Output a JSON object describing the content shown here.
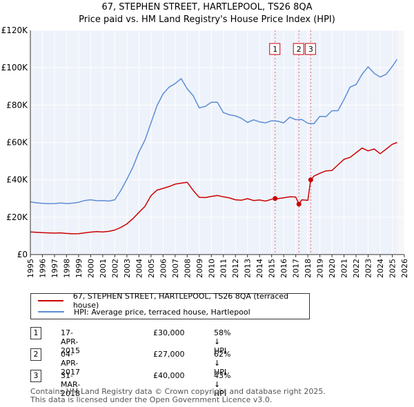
{
  "chart_data": {
    "type": "line",
    "title": "67, STEPHEN STREET, HARTLEPOOL, TS26 8QA",
    "subtitle": "Price paid vs. HM Land Registry's House Price Index (HPI)",
    "xlim": [
      1995,
      2026
    ],
    "ylim": [
      0,
      120000
    ],
    "x_ticks": [
      "1995",
      "1996",
      "1997",
      "1998",
      "1999",
      "2000",
      "2001",
      "2002",
      "2003",
      "2004",
      "2005",
      "2006",
      "2007",
      "2008",
      "2009",
      "2010",
      "2011",
      "2012",
      "2013",
      "2014",
      "2015",
      "2016",
      "2017",
      "2018",
      "2019",
      "2020",
      "2021",
      "2022",
      "2023",
      "2024",
      "2025",
      "2026"
    ],
    "y_ticks": [
      "£0",
      "£20K",
      "£40K",
      "£60K",
      "£80K",
      "£100K",
      "£120K"
    ],
    "y_tick_values": [
      0,
      20000,
      40000,
      60000,
      80000,
      100000,
      120000
    ],
    "grid": true,
    "series": [
      {
        "name": "67, STEPHEN STREET, HARTLEPOOL, TS26 8QA (terraced house)",
        "color": "#cc0000",
        "x": [
          1995.0,
          1995.5,
          1996.0,
          1996.5,
          1997.0,
          1997.5,
          1998.0,
          1998.5,
          1999.0,
          1999.5,
          2000.0,
          2000.5,
          2001.0,
          2001.5,
          2002.0,
          2002.5,
          2003.0,
          2003.5,
          2004.0,
          2004.5,
          2005.0,
          2005.5,
          2006.0,
          2006.5,
          2007.0,
          2007.5,
          2008.0,
          2008.5,
          2009.0,
          2009.5,
          2010.0,
          2010.5,
          2011.0,
          2011.5,
          2012.0,
          2012.5,
          2013.0,
          2013.5,
          2014.0,
          2014.5,
          2015.0,
          2015.29,
          2015.5,
          2016.0,
          2016.5,
          2017.0,
          2017.26,
          2017.5,
          2018.0,
          2018.24,
          2018.5,
          2019.0,
          2019.5,
          2020.0,
          2020.5,
          2021.0,
          2021.5,
          2022.0,
          2022.5,
          2023.0,
          2023.5,
          2024.0,
          2024.5,
          2025.0,
          2025.4
        ],
        "values": [
          12100,
          11900,
          11700,
          11600,
          11500,
          11600,
          11300,
          11100,
          11200,
          11600,
          12000,
          12300,
          12100,
          12400,
          13100,
          14500,
          16400,
          19200,
          22600,
          25800,
          31500,
          34500,
          35400,
          36400,
          37700,
          38200,
          38700,
          34300,
          30600,
          30500,
          31100,
          31600,
          30900,
          30300,
          29300,
          29100,
          29900,
          28900,
          29200,
          28600,
          29600,
          30000,
          29900,
          30400,
          30900,
          30800,
          27000,
          29300,
          29000,
          40000,
          42000,
          43500,
          44800,
          45000,
          48000,
          51000,
          52000,
          54500,
          57000,
          55500,
          56500,
          54000,
          56500,
          59000,
          60000
        ]
      },
      {
        "name": "HPI: Average price, terraced house, Hartlepool",
        "color": "#5b8dd6",
        "x": [
          1995.0,
          1995.5,
          1996.0,
          1996.5,
          1997.0,
          1997.5,
          1998.0,
          1998.5,
          1999.0,
          1999.5,
          2000.0,
          2000.5,
          2001.0,
          2001.5,
          2002.0,
          2002.5,
          2003.0,
          2003.5,
          2004.0,
          2004.5,
          2005.0,
          2005.5,
          2006.0,
          2006.5,
          2007.0,
          2007.5,
          2008.0,
          2008.5,
          2009.0,
          2009.5,
          2010.0,
          2010.5,
          2011.0,
          2011.5,
          2012.0,
          2012.5,
          2013.0,
          2013.5,
          2014.0,
          2014.5,
          2015.0,
          2015.5,
          2016.0,
          2016.5,
          2017.0,
          2017.5,
          2018.0,
          2018.5,
          2019.0,
          2019.5,
          2020.0,
          2020.5,
          2021.0,
          2021.5,
          2022.0,
          2022.5,
          2023.0,
          2023.5,
          2024.0,
          2024.5,
          2025.0,
          2025.4
        ],
        "values": [
          28200,
          27700,
          27400,
          27200,
          27300,
          27600,
          27300,
          27500,
          28000,
          28900,
          29300,
          28800,
          28900,
          28600,
          29300,
          34300,
          40300,
          46800,
          54900,
          61300,
          70500,
          79700,
          86000,
          89600,
          91500,
          94200,
          88700,
          85000,
          78500,
          79300,
          81500,
          81500,
          76000,
          74800,
          74200,
          72900,
          70700,
          72100,
          71000,
          70500,
          71600,
          71400,
          70500,
          73500,
          72200,
          72300,
          70300,
          70000,
          74000,
          73800,
          77000,
          77000,
          83000,
          89600,
          91000,
          96500,
          100500,
          97000,
          95000,
          96500,
          100700,
          104500
        ]
      }
    ],
    "vlines": [
      {
        "x": 2015.29,
        "label": "1"
      },
      {
        "x": 2017.26,
        "label": "2"
      },
      {
        "x": 2018.24,
        "label": "3"
      }
    ],
    "sales": [
      {
        "x": 2015.29,
        "y": 30000
      },
      {
        "x": 2017.26,
        "y": 27000
      },
      {
        "x": 2018.24,
        "y": 40000
      }
    ],
    "future_from": 2025.4
  },
  "legend": {
    "price_label": "67, STEPHEN STREET, HARTLEPOOL, TS26 8QA (terraced house)",
    "hpi_label": "HPI: Average price, terraced house, Hartlepool"
  },
  "transactions": [
    {
      "num": "1",
      "date": "17-APR-2015",
      "price": "£30,000",
      "hpi": "58% ↓ HPI"
    },
    {
      "num": "2",
      "date": "04-APR-2017",
      "price": "£27,000",
      "hpi": "62% ↓ HPI"
    },
    {
      "num": "3",
      "date": "31-MAR-2018",
      "price": "£40,000",
      "hpi": "43% ↓ HPI"
    }
  ],
  "footer": {
    "line1": "Contains HM Land Registry data © Crown copyright and database right 2025.",
    "line2": "This data is licensed under the Open Government Licence v3.0."
  }
}
